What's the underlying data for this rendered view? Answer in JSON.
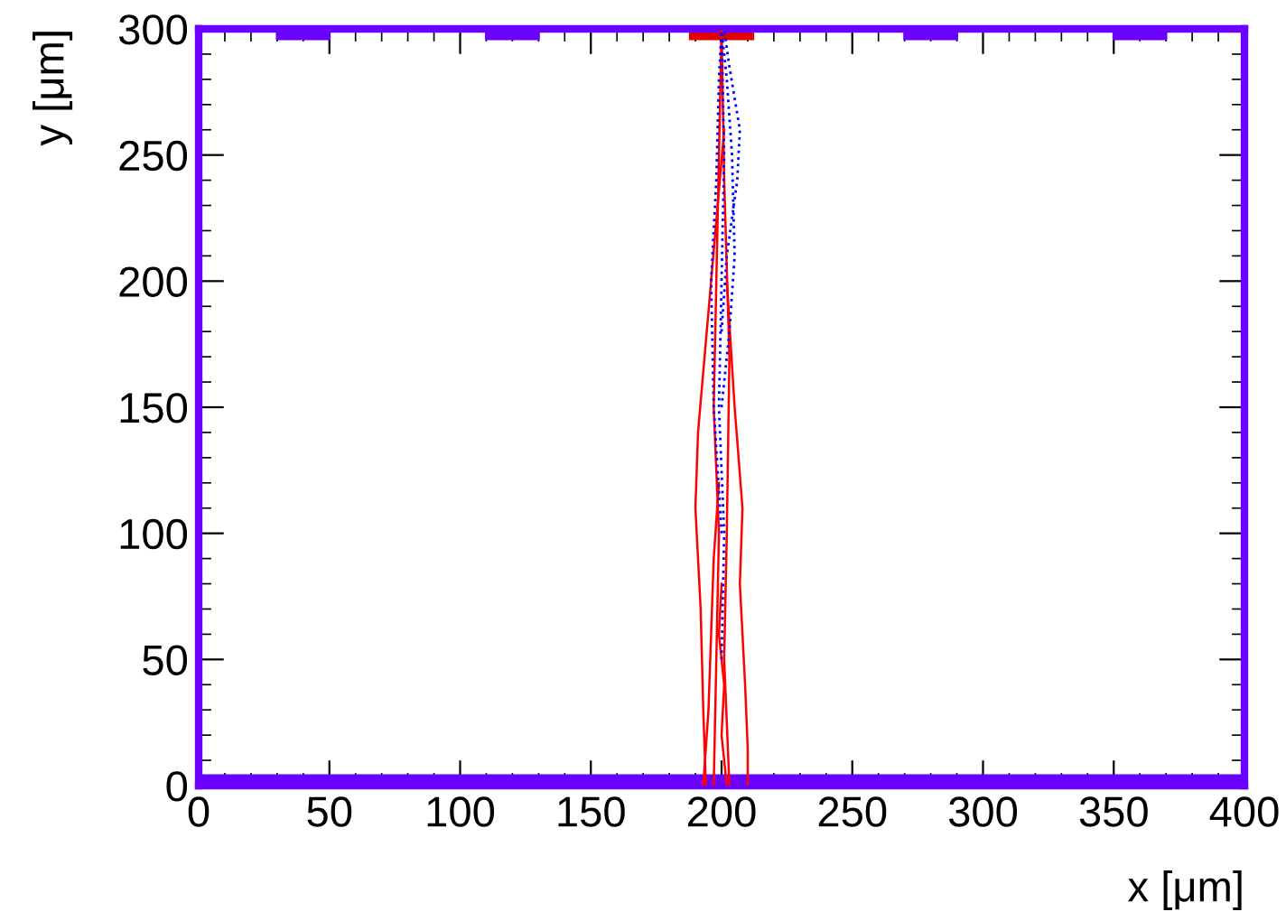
{
  "chart_data": {
    "type": "line",
    "xlabel": "x [μm]",
    "ylabel": "y [μm]",
    "xlim": [
      0,
      400
    ],
    "ylim": [
      0,
      300
    ],
    "xticks": [
      0,
      50,
      100,
      150,
      200,
      250,
      300,
      350,
      400
    ],
    "yticks": [
      0,
      50,
      100,
      150,
      200,
      250,
      300
    ],
    "grid": false,
    "legend": false,
    "marker": "none",
    "series": [
      {
        "color": "#ff0000",
        "line_style": "solid",
        "x": [
          200,
          199,
          198,
          197,
          199,
          198,
          197
        ],
        "values": [
          300,
          250,
          200,
          150,
          100,
          50,
          0
        ]
      },
      {
        "color": "#ff0000",
        "line_style": "solid",
        "x": [
          201,
          196,
          191,
          190,
          192,
          193,
          194
        ],
        "values": [
          260,
          200,
          140,
          110,
          70,
          30,
          0
        ]
      },
      {
        "color": "#ff0000",
        "line_style": "solid",
        "x": [
          202,
          205,
          208,
          207,
          209,
          210,
          210
        ],
        "values": [
          200,
          150,
          110,
          80,
          40,
          15,
          0
        ]
      },
      {
        "color": "#ff0000",
        "line_style": "solid",
        "x": [
          200,
          201,
          203,
          202,
          201,
          203
        ],
        "values": [
          300,
          240,
          170,
          100,
          50,
          0
        ]
      },
      {
        "color": "#ff0000",
        "line_style": "solid",
        "x": [
          199,
          197,
          196,
          195,
          193
        ],
        "values": [
          120,
          90,
          60,
          30,
          0
        ]
      },
      {
        "color": "#ff0000",
        "line_style": "solid",
        "x": [
          200,
          199,
          201,
          200,
          202
        ],
        "values": [
          80,
          60,
          40,
          20,
          0
        ]
      },
      {
        "color": "#0000ff",
        "line_style": "dotted",
        "x": [
          200,
          203,
          205,
          204,
          202,
          200
        ],
        "values": [
          150,
          180,
          210,
          250,
          280,
          300
        ]
      },
      {
        "color": "#0000ff",
        "line_style": "dotted",
        "x": [
          200,
          197,
          196,
          198,
          199,
          200
        ],
        "values": [
          100,
          150,
          200,
          240,
          280,
          300
        ]
      },
      {
        "color": "#0000ff",
        "line_style": "dotted",
        "x": [
          200,
          202,
          206,
          207,
          203,
          201
        ],
        "values": [
          180,
          210,
          240,
          260,
          285,
          300
        ]
      },
      {
        "color": "#0000ff",
        "line_style": "dotted",
        "x": [
          200,
          201,
          199,
          200,
          201,
          200
        ],
        "values": [
          50,
          100,
          150,
          200,
          250,
          300
        ]
      }
    ]
  }
}
